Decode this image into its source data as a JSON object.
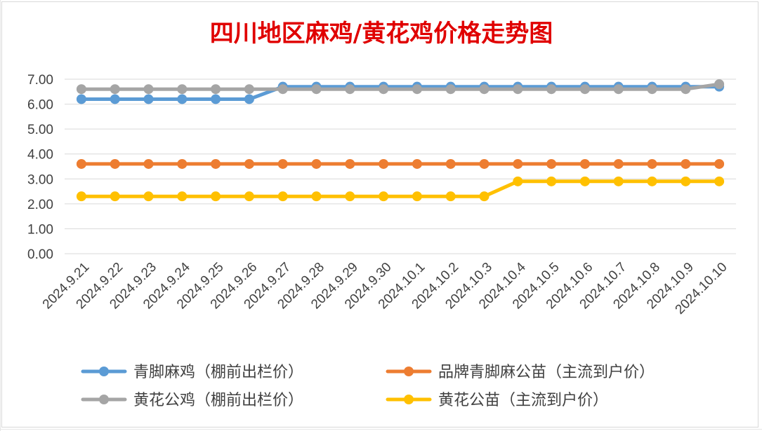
{
  "chart_data": {
    "type": "line",
    "title": "四川地区麻鸡/黄花鸡价格走势图",
    "categories": [
      "2024.9.21",
      "2024.9.22",
      "2024.9.23",
      "2024.9.24",
      "2024.9.25",
      "2024.9.26",
      "2024.9.27",
      "2024.9.28",
      "2024.9.29",
      "2024.9.30",
      "2024.10.1",
      "2024.10.2",
      "2024.10.3",
      "2024.10.4",
      "2024.10.5",
      "2024.10.6",
      "2024.10.7",
      "2024.10.8",
      "2024.10.9",
      "2024.10.10"
    ],
    "y_ticks": [
      "0.00",
      "1.00",
      "2.00",
      "3.00",
      "4.00",
      "5.00",
      "6.00",
      "7.00"
    ],
    "ylim": [
      0,
      7
    ],
    "grid": true,
    "legend_position": "bottom",
    "series": [
      {
        "name": "青脚麻鸡（棚前出栏价）",
        "color": "#5b9bd5",
        "values": [
          6.2,
          6.2,
          6.2,
          6.2,
          6.2,
          6.2,
          6.7,
          6.7,
          6.7,
          6.7,
          6.7,
          6.7,
          6.7,
          6.7,
          6.7,
          6.7,
          6.7,
          6.7,
          6.7,
          6.7
        ]
      },
      {
        "name": "品牌青脚麻公苗（主流到户价）",
        "color": "#ed7d31",
        "values": [
          3.6,
          3.6,
          3.6,
          3.6,
          3.6,
          3.6,
          3.6,
          3.6,
          3.6,
          3.6,
          3.6,
          3.6,
          3.6,
          3.6,
          3.6,
          3.6,
          3.6,
          3.6,
          3.6,
          3.6
        ]
      },
      {
        "name": "黄花公鸡（棚前出栏价）",
        "color": "#a5a5a5",
        "values": [
          6.6,
          6.6,
          6.6,
          6.6,
          6.6,
          6.6,
          6.6,
          6.6,
          6.6,
          6.6,
          6.6,
          6.6,
          6.6,
          6.6,
          6.6,
          6.6,
          6.6,
          6.6,
          6.6,
          6.8
        ]
      },
      {
        "name": "黄花公苗（主流到户价）",
        "color": "#ffc000",
        "values": [
          2.3,
          2.3,
          2.3,
          2.3,
          2.3,
          2.3,
          2.3,
          2.3,
          2.3,
          2.3,
          2.3,
          2.3,
          2.3,
          2.9,
          2.9,
          2.9,
          2.9,
          2.9,
          2.9,
          2.9
        ]
      }
    ],
    "series_draw_order": [
      1,
      3,
      0,
      2
    ]
  }
}
